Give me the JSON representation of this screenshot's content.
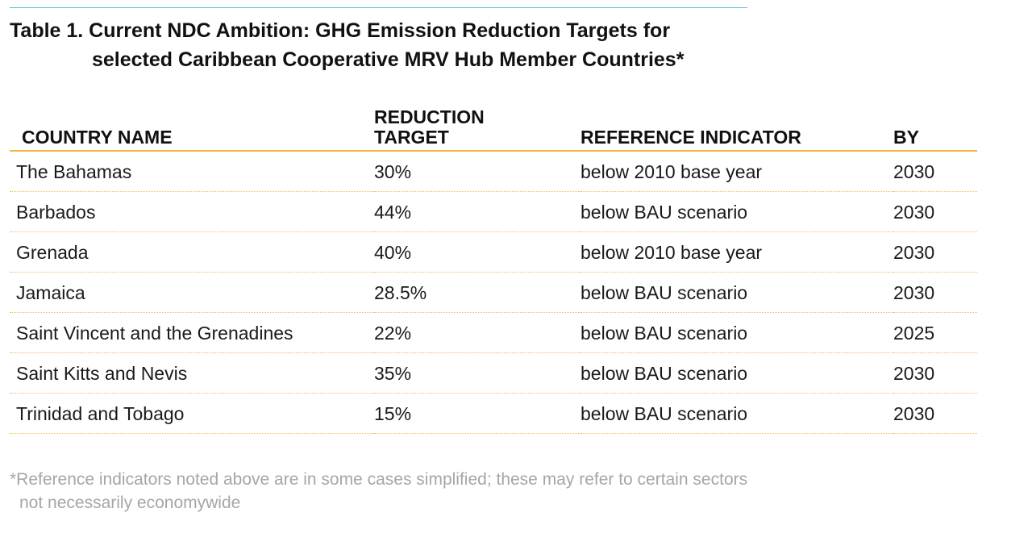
{
  "title": {
    "line1": "Table 1. Current NDC Ambition:  GHG Emission Reduction Targets for",
    "line2": "selected Caribbean Cooperative MRV Hub Member Countries*"
  },
  "table": {
    "headers": {
      "country": "COUNTRY NAME",
      "target_line1": "REDUCTION",
      "target_line2": "TARGET",
      "reference": "REFERENCE INDICATOR",
      "by": "BY"
    },
    "rows": [
      {
        "country": "The Bahamas",
        "target": "30%",
        "reference": "below 2010 base year",
        "by": "2030"
      },
      {
        "country": "Barbados",
        "target": "44%",
        "reference": "below BAU scenario",
        "by": "2030"
      },
      {
        "country": "Grenada",
        "target": "40%",
        "reference": "below 2010 base year",
        "by": "2030"
      },
      {
        "country": "Jamaica",
        "target": "28.5%",
        "reference": "below BAU scenario",
        "by": "2030"
      },
      {
        "country": "Saint Vincent and the Grenadines",
        "target": "22%",
        "reference": "below BAU scenario",
        "by": "2025"
      },
      {
        "country": "Saint Kitts and Nevis",
        "target": "35%",
        "reference": "below BAU scenario",
        "by": "2030"
      },
      {
        "country": "Trinidad and Tobago",
        "target": "15%",
        "reference": "below BAU scenario",
        "by": "2030"
      }
    ]
  },
  "footnote": {
    "line1": "*Reference indicators noted above are in some cases simplified; these may refer to certain sectors",
    "line2": "not necessarily economywide"
  },
  "colors": {
    "top_rule": "#5bc3df",
    "header_rule": "#f0b43c",
    "row_divider": "#f0c060",
    "footnote_text": "#a6a6a6"
  }
}
